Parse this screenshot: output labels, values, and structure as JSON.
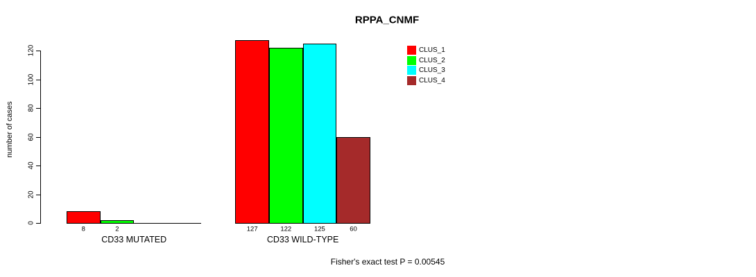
{
  "chart_data": {
    "type": "bar",
    "title": "RPPA_CNMF",
    "ylabel": "number of cases",
    "xlabel": "",
    "categories": [
      "CD33 MUTATED",
      "CD33 WILD-TYPE"
    ],
    "series": [
      {
        "name": "CLUS_1",
        "color": "#ff0000",
        "values": [
          8,
          127
        ]
      },
      {
        "name": "CLUS_2",
        "color": "#00ff00",
        "values": [
          2,
          122
        ]
      },
      {
        "name": "CLUS_3",
        "color": "#00ffff",
        "values": [
          0,
          125
        ]
      },
      {
        "name": "CLUS_4",
        "color": "#a52a2a",
        "values": [
          0,
          60
        ]
      }
    ],
    "yticks": [
      0,
      20,
      40,
      60,
      80,
      100,
      120
    ],
    "ylim": [
      0,
      120
    ],
    "grid": false,
    "legend_position": "right",
    "bar_value_labels_shown": true,
    "annotation": "Fisher's exact test P = 0.00545"
  }
}
